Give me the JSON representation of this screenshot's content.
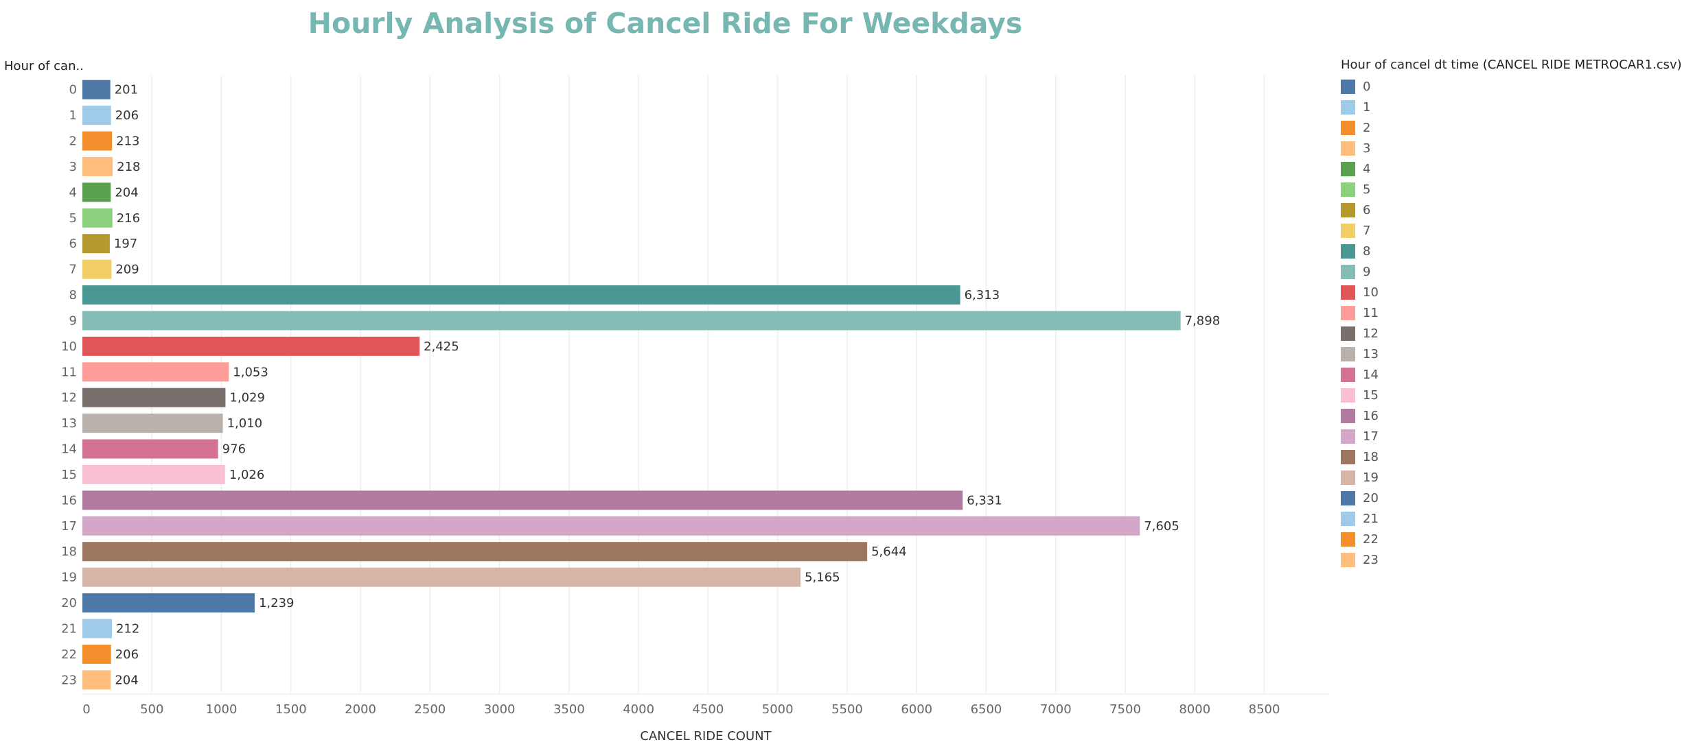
{
  "chart_data": {
    "type": "bar",
    "orientation": "horizontal",
    "title": "Hourly Analysis of Cancel Ride For Weekdays",
    "row_header": "Hour of can..",
    "xlabel": "CANCEL RIDE COUNT",
    "ylabel": "",
    "xlim": [
      0,
      8500
    ],
    "x_ticks": [
      "0",
      "500",
      "1000",
      "1500",
      "2000",
      "2500",
      "3000",
      "3500",
      "4000",
      "4500",
      "5000",
      "5500",
      "6000",
      "6500",
      "7000",
      "7500",
      "8000",
      "8500"
    ],
    "grid": "vertical",
    "legend_position": "right",
    "legend_title": "Hour of cancel dt time (CANCEL RIDE METROCAR1.csv)",
    "categories": [
      "0",
      "1",
      "2",
      "3",
      "4",
      "5",
      "6",
      "7",
      "8",
      "9",
      "10",
      "11",
      "12",
      "13",
      "14",
      "15",
      "16",
      "17",
      "18",
      "19",
      "20",
      "21",
      "22",
      "23"
    ],
    "values": [
      201,
      206,
      213,
      218,
      204,
      216,
      197,
      209,
      6313,
      7898,
      2425,
      1053,
      1029,
      1010,
      976,
      1026,
      6331,
      7605,
      5644,
      5165,
      1239,
      212,
      206,
      204
    ],
    "value_labels": [
      "201",
      "206",
      "213",
      "218",
      "204",
      "216",
      "197",
      "209",
      "6,313",
      "7,898",
      "2,425",
      "1,053",
      "1,029",
      "1,010",
      "976",
      "1,026",
      "6,331",
      "7,605",
      "5,644",
      "5,165",
      "1,239",
      "212",
      "206",
      "204"
    ],
    "colors": [
      "#4e79a7",
      "#a0cbe8",
      "#f28e2b",
      "#ffbe7d",
      "#59a14f",
      "#8cd17d",
      "#b6992d",
      "#f1ce63",
      "#499894",
      "#86bcb6",
      "#e15759",
      "#ff9d9a",
      "#79706e",
      "#bab0ac",
      "#d37295",
      "#fabfd2",
      "#b07aa1",
      "#d4a6c8",
      "#9d7660",
      "#d7b5a6",
      "#4e79a7",
      "#a0cbe8",
      "#f28e2b",
      "#ffbe7d"
    ]
  }
}
